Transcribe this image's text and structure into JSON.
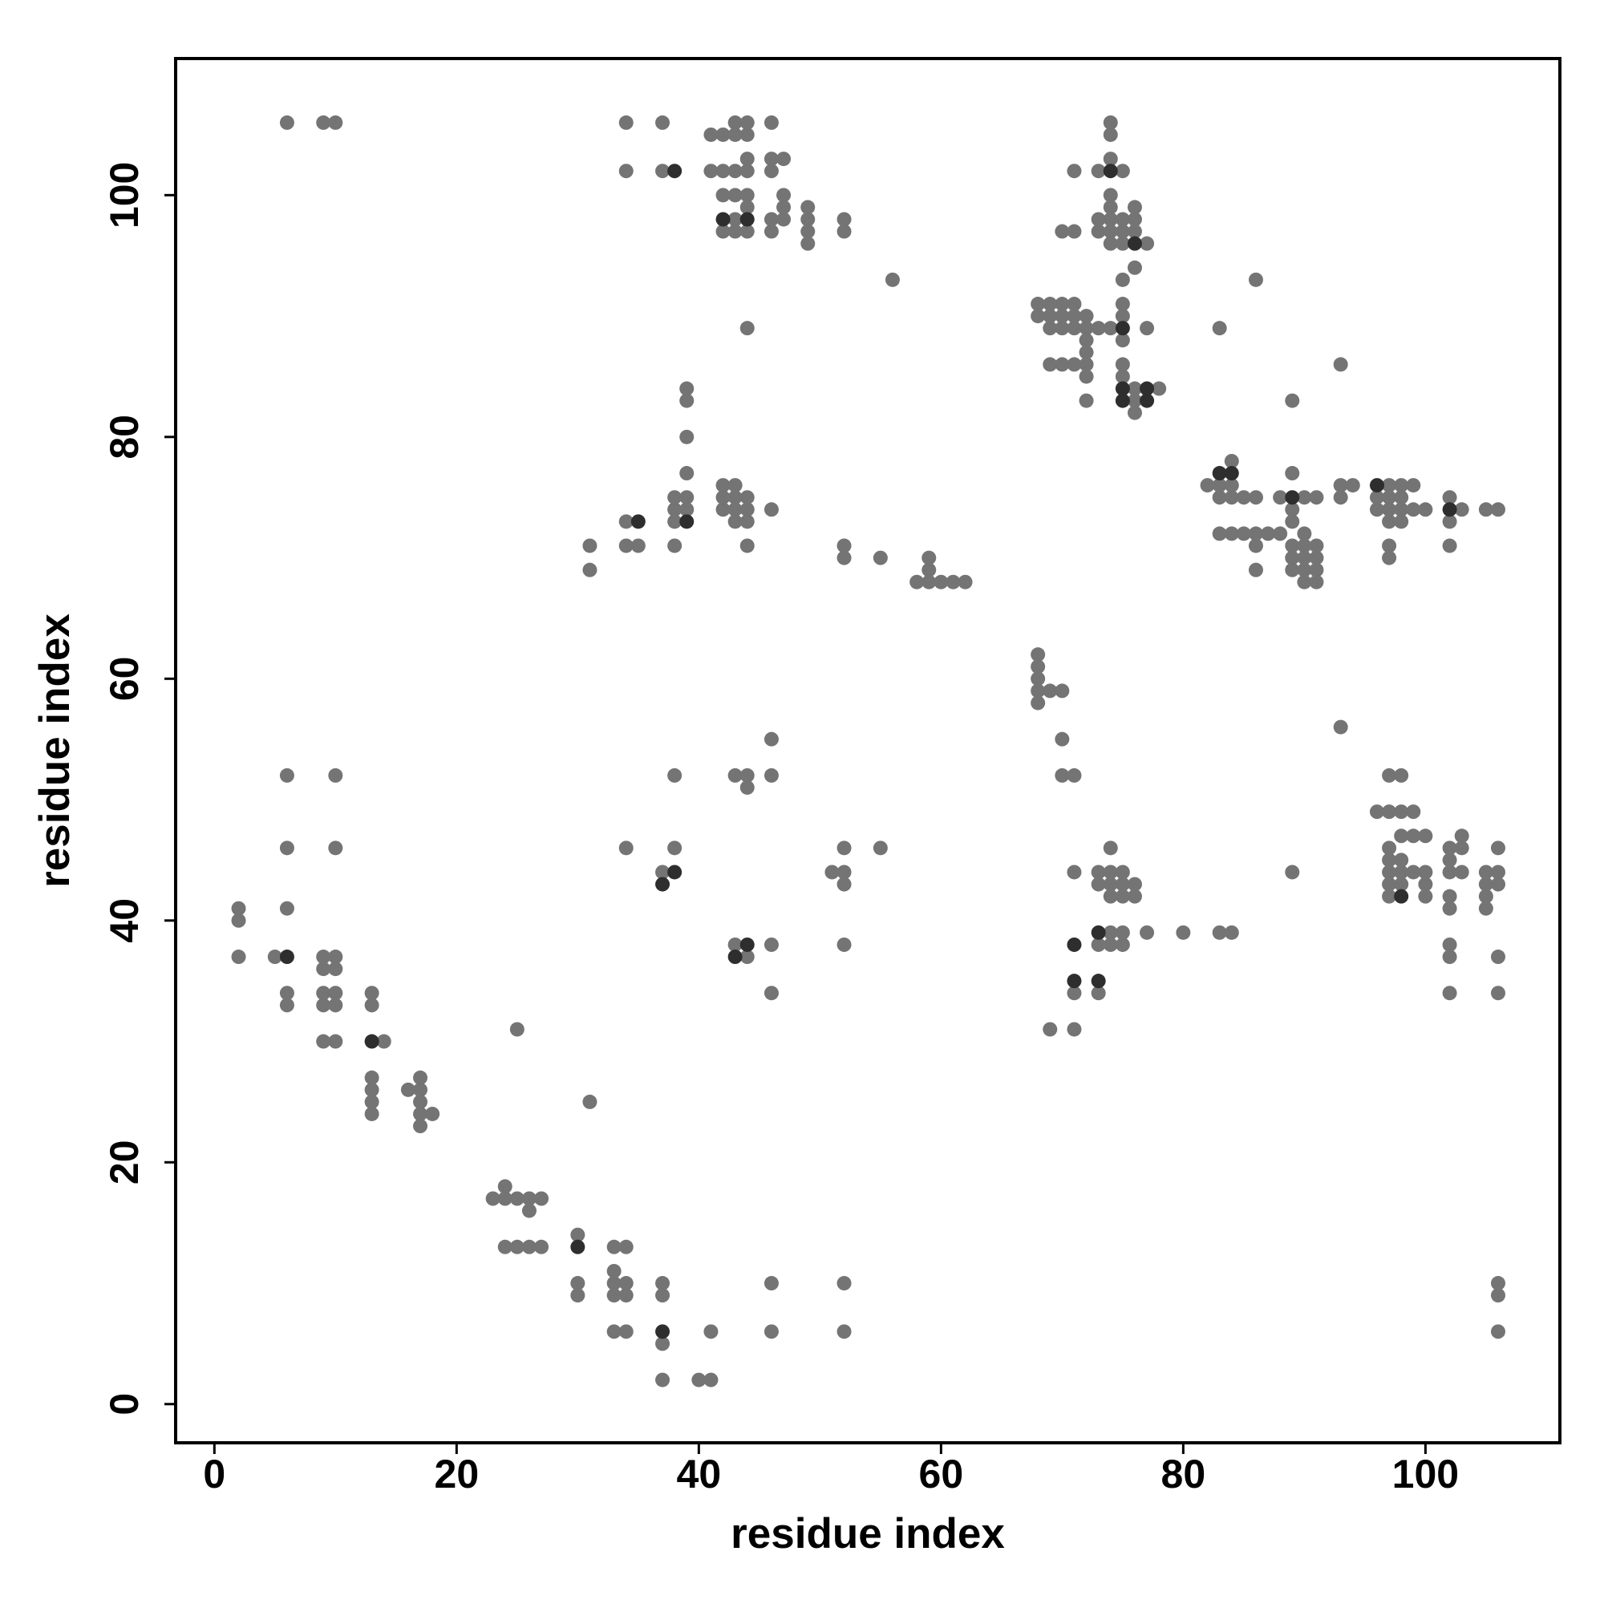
{
  "chart_data": {
    "type": "scatter",
    "x_label": "residue index",
    "y_label": "residue index",
    "xlim": [
      -3.2,
      111.1
    ],
    "ylim": [
      -3.2,
      111.3
    ],
    "xticks": [
      0,
      20,
      40,
      60,
      80,
      100
    ],
    "yticks": [
      0,
      20,
      40,
      60,
      80,
      100
    ],
    "grid": false,
    "series": [
      {
        "color": "#747474",
        "x": [
          6,
          9,
          10,
          34,
          37,
          43,
          44,
          46,
          74,
          41,
          42,
          43,
          44,
          74,
          44,
          46,
          47,
          74,
          34,
          37,
          41,
          42,
          43,
          44,
          46,
          71,
          73,
          75,
          42,
          43,
          44,
          47,
          74,
          44,
          47,
          49,
          74,
          76,
          43,
          46,
          47,
          49,
          52,
          73,
          74,
          75,
          76,
          42,
          43,
          44,
          46,
          49,
          52,
          70,
          71,
          73,
          74,
          75,
          76,
          49,
          74,
          75,
          77,
          76,
          56,
          75,
          86,
          68,
          69,
          70,
          71,
          75,
          68,
          69,
          70,
          71,
          72,
          75,
          44,
          69,
          70,
          71,
          72,
          73,
          74,
          77,
          83,
          72,
          75,
          72,
          69,
          70,
          71,
          72,
          75,
          93,
          72,
          75,
          39,
          76,
          78,
          39,
          72,
          76,
          89,
          76,
          39,
          84,
          39,
          89,
          42,
          43,
          82,
          83,
          84,
          93,
          94,
          97,
          98,
          99,
          38,
          39,
          42,
          43,
          44,
          83,
          84,
          85,
          86,
          88,
          90,
          91,
          93,
          96,
          97,
          98,
          102,
          38,
          39,
          42,
          43,
          44,
          46,
          89,
          96,
          97,
          98,
          99,
          100,
          103,
          105,
          106,
          34,
          38,
          43,
          44,
          89,
          97,
          98,
          102,
          83,
          84,
          85,
          86,
          87,
          88,
          90,
          31,
          34,
          35,
          38,
          44,
          52,
          86,
          89,
          90,
          91,
          97,
          102,
          52,
          55,
          59,
          89,
          90,
          91,
          97,
          31,
          59,
          86,
          89,
          90,
          91,
          58,
          59,
          60,
          61,
          62,
          90,
          91,
          68,
          68,
          68,
          68,
          69,
          70,
          68,
          93,
          46,
          70,
          6,
          10,
          38,
          43,
          44,
          46,
          70,
          71,
          97,
          98,
          44,
          96,
          97,
          98,
          99,
          98,
          99,
          100,
          103,
          6,
          10,
          34,
          38,
          52,
          55,
          74,
          97,
          102,
          103,
          106,
          97,
          98,
          102,
          37,
          51,
          52,
          71,
          73,
          74,
          75,
          89,
          97,
          98,
          99,
          100,
          102,
          103,
          105,
          106,
          52,
          73,
          74,
          75,
          76,
          97,
          98,
          100,
          105,
          106,
          74,
          75,
          76,
          97,
          100,
          102,
          105,
          2,
          6,
          102,
          105,
          2,
          74,
          75,
          77,
          80,
          83,
          84,
          43,
          46,
          52,
          73,
          74,
          75,
          102,
          2,
          5,
          9,
          10,
          44,
          102,
          106,
          9,
          10,
          6,
          9,
          10,
          13,
          46,
          71,
          73,
          102,
          106,
          6,
          9,
          10,
          13,
          25,
          69,
          71,
          9,
          10,
          14,
          13,
          17,
          13,
          16,
          17,
          13,
          17,
          31,
          13,
          17,
          18,
          17,
          24,
          23,
          24,
          25,
          26,
          27,
          26,
          30,
          24,
          25,
          26,
          27,
          33,
          34,
          33,
          30,
          33,
          34,
          37,
          46,
          52,
          106,
          30,
          33,
          34,
          37,
          106,
          33,
          34,
          41,
          46,
          52,
          106,
          37,
          37,
          40,
          41
        ],
        "y": [
          106,
          106,
          106,
          106,
          106,
          106,
          106,
          106,
          106,
          105,
          105,
          105,
          105,
          105,
          103,
          103,
          103,
          103,
          102,
          102,
          102,
          102,
          102,
          102,
          102,
          102,
          102,
          102,
          100,
          100,
          100,
          100,
          100,
          99,
          99,
          99,
          99,
          99,
          98,
          98,
          98,
          98,
          98,
          98,
          98,
          98,
          98,
          97,
          97,
          97,
          97,
          97,
          97,
          97,
          97,
          97,
          97,
          97,
          97,
          96,
          96,
          96,
          96,
          94,
          93,
          93,
          93,
          91,
          91,
          91,
          91,
          91,
          90,
          90,
          90,
          90,
          90,
          90,
          89,
          89,
          89,
          89,
          89,
          89,
          89,
          89,
          89,
          88,
          88,
          87,
          86,
          86,
          86,
          86,
          86,
          86,
          85,
          85,
          84,
          84,
          84,
          83,
          83,
          83,
          83,
          82,
          80,
          78,
          77,
          77,
          76,
          76,
          76,
          76,
          76,
          76,
          76,
          76,
          76,
          76,
          75,
          75,
          75,
          75,
          75,
          75,
          75,
          75,
          75,
          75,
          75,
          75,
          75,
          75,
          75,
          75,
          75,
          74,
          74,
          74,
          74,
          74,
          74,
          74,
          74,
          74,
          74,
          74,
          74,
          74,
          74,
          74,
          73,
          73,
          73,
          73,
          73,
          73,
          73,
          73,
          72,
          72,
          72,
          72,
          72,
          72,
          72,
          71,
          71,
          71,
          71,
          71,
          71,
          71,
          71,
          71,
          71,
          71,
          71,
          70,
          70,
          70,
          70,
          70,
          70,
          70,
          69,
          69,
          69,
          69,
          69,
          69,
          68,
          68,
          68,
          68,
          68,
          68,
          68,
          62,
          61,
          60,
          59,
          59,
          59,
          58,
          56,
          55,
          55,
          52,
          52,
          52,
          52,
          52,
          52,
          52,
          52,
          52,
          52,
          51,
          49,
          49,
          49,
          49,
          47,
          47,
          47,
          47,
          46,
          46,
          46,
          46,
          46,
          46,
          46,
          46,
          46,
          46,
          46,
          45,
          45,
          45,
          44,
          44,
          44,
          44,
          44,
          44,
          44,
          44,
          44,
          44,
          44,
          44,
          44,
          44,
          44,
          44,
          43,
          43,
          43,
          43,
          43,
          43,
          43,
          43,
          43,
          43,
          42,
          42,
          42,
          42,
          42,
          42,
          42,
          41,
          41,
          41,
          41,
          40,
          39,
          39,
          39,
          39,
          39,
          39,
          38,
          38,
          38,
          38,
          38,
          38,
          38,
          37,
          37,
          37,
          37,
          37,
          37,
          37,
          36,
          36,
          34,
          34,
          34,
          34,
          34,
          34,
          34,
          34,
          34,
          33,
          33,
          33,
          33,
          31,
          31,
          31,
          30,
          30,
          30,
          27,
          27,
          26,
          26,
          26,
          25,
          25,
          25,
          24,
          24,
          24,
          23,
          18,
          17,
          17,
          17,
          17,
          17,
          16,
          14,
          13,
          13,
          13,
          13,
          13,
          13,
          11,
          10,
          10,
          10,
          10,
          10,
          10,
          10,
          9,
          9,
          9,
          9,
          9,
          6,
          6,
          6,
          6,
          6,
          6,
          5,
          2,
          2,
          2
        ]
      },
      {
        "color": "#2e2e2e",
        "x": [
          38,
          74,
          42,
          44,
          76,
          75,
          75,
          77,
          75,
          77,
          83,
          84,
          89,
          35,
          39,
          102,
          96,
          38,
          37,
          44,
          43,
          73,
          73,
          71,
          13,
          30,
          37,
          6,
          98,
          71
        ],
        "y": [
          102,
          102,
          98,
          98,
          96,
          89,
          84,
          84,
          83,
          83,
          77,
          77,
          75,
          73,
          73,
          74,
          76,
          44,
          43,
          38,
          37,
          39,
          35,
          35,
          30,
          13,
          6,
          37,
          42,
          38
        ]
      }
    ]
  }
}
